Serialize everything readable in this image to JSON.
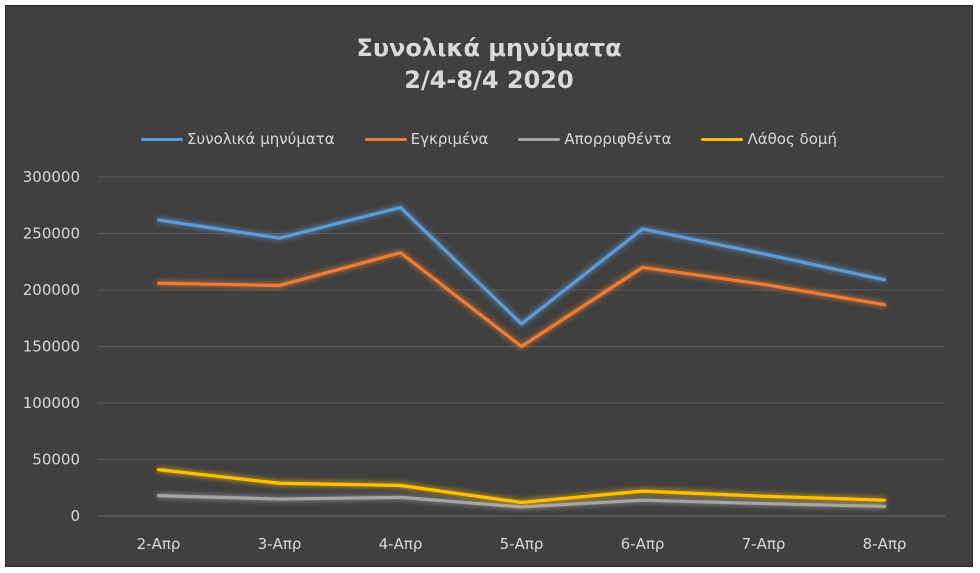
{
  "chart_data": {
    "type": "line",
    "title_line1": "Συνολικά μηνύματα",
    "title_line2": "2/4-8/4 2020",
    "categories": [
      "2-Απρ",
      "3-Απρ",
      "4-Απρ",
      "5-Απρ",
      "6-Απρ",
      "7-Απρ",
      "8-Απρ"
    ],
    "y_ticks": [
      "300000",
      "250000",
      "200000",
      "150000",
      "100000",
      "50000",
      "0"
    ],
    "ylim": [
      0,
      300000
    ],
    "grid": true,
    "legend_position": "top",
    "series": [
      {
        "name": "Συνολικά μηνύματα",
        "color": "#5b9bd5",
        "values": [
          262000,
          246000,
          273000,
          170000,
          254000,
          232000,
          209000
        ]
      },
      {
        "name": "Εγκριμένα",
        "color": "#ed7d31",
        "values": [
          206000,
          204000,
          233000,
          150000,
          220000,
          205000,
          187000
        ]
      },
      {
        "name": "Απορριφθέντα",
        "color": "#a5a5a5",
        "values": [
          18000,
          15000,
          16500,
          8000,
          14000,
          11000,
          8500
        ]
      },
      {
        "name": "Λάθος δομή",
        "color": "#ffc000",
        "values": [
          41000,
          29000,
          27000,
          12000,
          22000,
          17500,
          14000
        ]
      }
    ]
  }
}
